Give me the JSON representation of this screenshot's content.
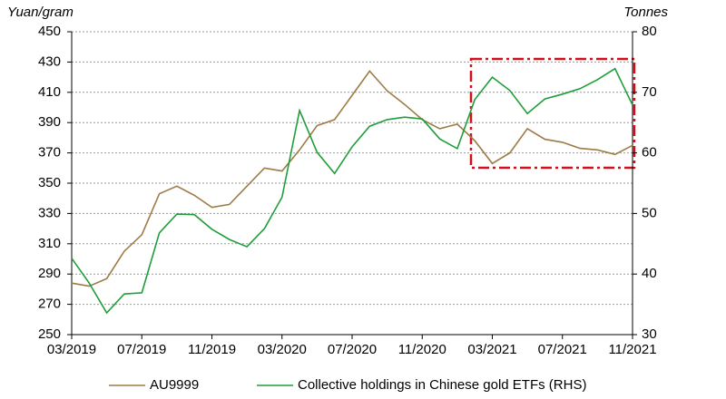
{
  "chart_data": {
    "type": "line",
    "y_label": "Yuan/gram",
    "y2_label": "Tonnes",
    "categories": [
      "03/2019",
      null,
      null,
      null,
      "07/2019",
      null,
      null,
      null,
      "11/2019",
      null,
      null,
      null,
      "03/2020",
      null,
      null,
      null,
      "07/2020",
      null,
      null,
      null,
      "11/2020",
      null,
      null,
      null,
      "03/2021",
      null,
      null,
      null,
      "07/2021",
      null,
      null,
      null,
      "11/2021"
    ],
    "series": [
      {
        "name": "AU9999",
        "color": "#9c7b45",
        "values": [
          284,
          282,
          287,
          305,
          316,
          343,
          348,
          342,
          334,
          336,
          348,
          360,
          358,
          372,
          388,
          392,
          408,
          424,
          411,
          402,
          392,
          386,
          389,
          378,
          363,
          370,
          386,
          379,
          377,
          373,
          372,
          369,
          375
        ]
      },
      {
        "name": "Collective holdings in Chinese gold ETFs (RHS)",
        "color": "#1e9e3a",
        "axis": "y2",
        "values": [
          42.6,
          38.5,
          33.6,
          36.7,
          36.9,
          46.8,
          49.9,
          49.8,
          47.4,
          45.7,
          44.5,
          47.5,
          52.7,
          67.0,
          60.1,
          56.6,
          61.0,
          64.4,
          65.5,
          65.9,
          65.6,
          62.3,
          60.7,
          68.8,
          72.5,
          70.3,
          66.5,
          68.9,
          69.7,
          70.6,
          72.1,
          73.9,
          67.9
        ]
      }
    ],
    "ylim": [
      250,
      450
    ],
    "yticks": [
      250,
      270,
      290,
      310,
      330,
      350,
      370,
      390,
      410,
      430,
      450
    ],
    "y2lim": [
      30,
      80
    ],
    "y2ticks": [
      30,
      40,
      50,
      60,
      70,
      80
    ],
    "grid": true,
    "legend": "bottom"
  }
}
